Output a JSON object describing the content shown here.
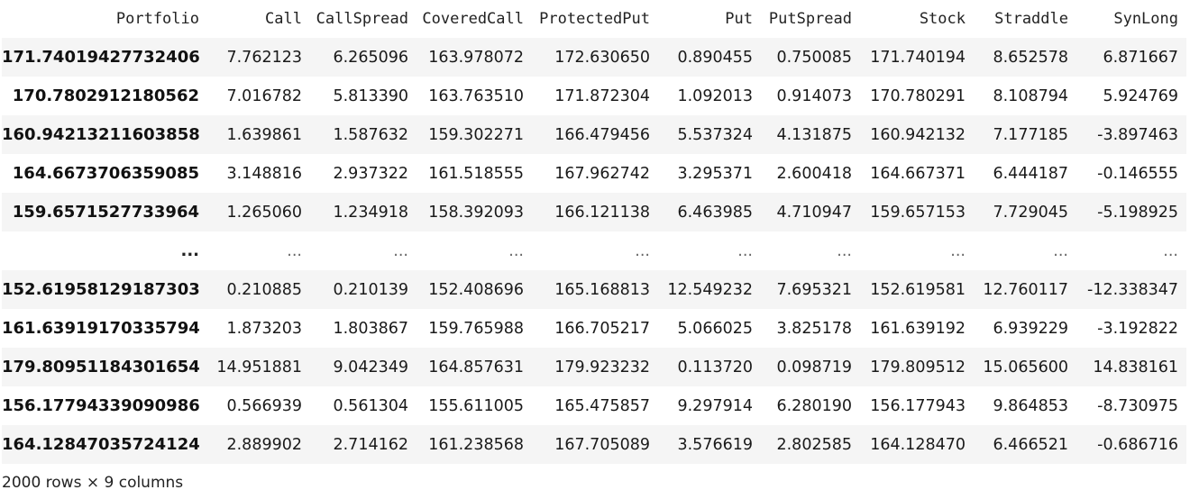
{
  "table": {
    "index_header": "Portfolio",
    "columns": [
      "Call",
      "CallSpread",
      "CoveredCall",
      "ProtectedPut",
      "Put",
      "PutSpread",
      "Stock",
      "Straddle",
      "SynLong"
    ],
    "rows": [
      {
        "index": "171.74019427732406",
        "cells": [
          "7.762123",
          "6.265096",
          "163.978072",
          "172.630650",
          "0.890455",
          "0.750085",
          "171.740194",
          "8.652578",
          "6.871667"
        ]
      },
      {
        "index": "170.7802912180562",
        "cells": [
          "7.016782",
          "5.813390",
          "163.763510",
          "171.872304",
          "1.092013",
          "0.914073",
          "170.780291",
          "8.108794",
          "5.924769"
        ]
      },
      {
        "index": "160.94213211603858",
        "cells": [
          "1.639861",
          "1.587632",
          "159.302271",
          "166.479456",
          "5.537324",
          "4.131875",
          "160.942132",
          "7.177185",
          "-3.897463"
        ]
      },
      {
        "index": "164.6673706359085",
        "cells": [
          "3.148816",
          "2.937322",
          "161.518555",
          "167.962742",
          "3.295371",
          "2.600418",
          "164.667371",
          "6.444187",
          "-0.146555"
        ]
      },
      {
        "index": "159.6571527733964",
        "cells": [
          "1.265060",
          "1.234918",
          "158.392093",
          "166.121138",
          "6.463985",
          "4.710947",
          "159.657153",
          "7.729045",
          "-5.198925"
        ]
      },
      {
        "index": "...",
        "cells": [
          "...",
          "...",
          "...",
          "...",
          "...",
          "...",
          "...",
          "...",
          "..."
        ]
      },
      {
        "index": "152.61958129187303",
        "cells": [
          "0.210885",
          "0.210139",
          "152.408696",
          "165.168813",
          "12.549232",
          "7.695321",
          "152.619581",
          "12.760117",
          "-12.338347"
        ]
      },
      {
        "index": "161.63919170335794",
        "cells": [
          "1.873203",
          "1.803867",
          "159.765988",
          "166.705217",
          "5.066025",
          "3.825178",
          "161.639192",
          "6.939229",
          "-3.192822"
        ]
      },
      {
        "index": "179.80951184301654",
        "cells": [
          "14.951881",
          "9.042349",
          "164.857631",
          "179.923232",
          "0.113720",
          "0.098719",
          "179.809512",
          "15.065600",
          "14.838161"
        ]
      },
      {
        "index": "156.17794339090986",
        "cells": [
          "0.566939",
          "0.561304",
          "155.611005",
          "165.475857",
          "9.297914",
          "6.280190",
          "156.177943",
          "9.864853",
          "-8.730975"
        ]
      },
      {
        "index": "164.12847035724124",
        "cells": [
          "2.889902",
          "2.714162",
          "161.238568",
          "167.705089",
          "3.576619",
          "2.802585",
          "164.128470",
          "6.466521",
          "-0.686716"
        ]
      }
    ]
  },
  "footer": {
    "summary": "2000 rows × 9 columns"
  }
}
